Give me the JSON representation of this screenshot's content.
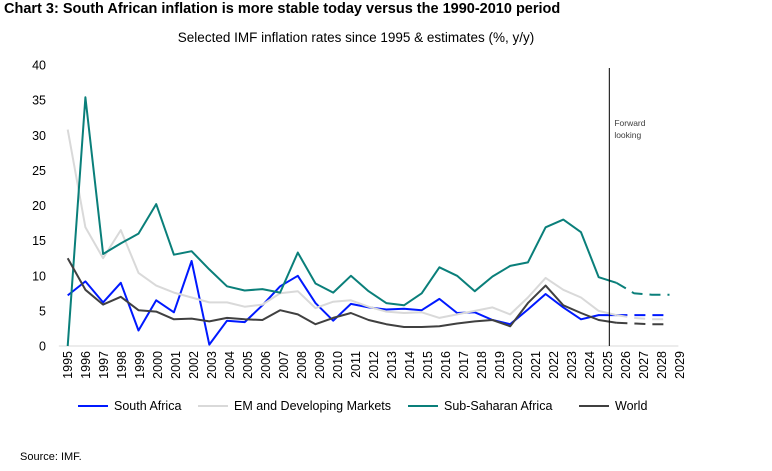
{
  "title": "Chart 3: South African inflation is more stable today versus the 1990-2010 period",
  "source": "Source: IMF.",
  "chart_data": {
    "type": "line",
    "title": "Chart 3: South African inflation is more stable today versus the 1990-2010 period",
    "subtitle": "Selected IMF inflation rates since 1995 & estimates (%, y/y)",
    "xlabel": "",
    "ylabel": "",
    "x": [
      1995,
      1996,
      1997,
      1998,
      1999,
      2000,
      2001,
      2002,
      2003,
      2004,
      2005,
      2006,
      2007,
      2008,
      2009,
      2010,
      2011,
      2012,
      2013,
      2014,
      2015,
      2016,
      2017,
      2018,
      2019,
      2020,
      2021,
      2022,
      2023,
      2024,
      2025,
      2026,
      2027,
      2028,
      2029
    ],
    "tick_labels": [
      "1995",
      "1996",
      "1997",
      "1998",
      "1999",
      "2000",
      "2001",
      "2002",
      "2003",
      "2004",
      "2005",
      "2006",
      "2007",
      "2008",
      "2009",
      "2010",
      "2011",
      "2012",
      "2013",
      "2014",
      "2015",
      "2016",
      "2017",
      "2018",
      "2019",
      "2020",
      "2021",
      "2022",
      "2023",
      "2024",
      "2025",
      "2026",
      "2027",
      "2028",
      "2029"
    ],
    "ylim": [
      0,
      40
    ],
    "yticks": [
      "0",
      "5",
      "10",
      "15",
      "20",
      "25",
      "30",
      "35",
      "40"
    ],
    "grid": false,
    "legend_position": "bottom",
    "forward_looking_label": "Forward looking",
    "forward_looking_year": 2025,
    "estimates_dashed_from": 2026,
    "series": [
      {
        "name": "South Africa",
        "color": "#0019ff",
        "values": [
          7.2,
          9.2,
          6.2,
          9.0,
          2.2,
          6.5,
          4.8,
          12.1,
          0.2,
          3.6,
          3.4,
          5.8,
          8.5,
          10.0,
          6.1,
          3.6,
          6.0,
          5.5,
          5.2,
          5.3,
          5.1,
          6.7,
          4.7,
          4.8,
          3.7,
          3.1,
          5.2,
          7.4,
          5.5,
          3.8,
          4.4,
          4.4,
          4.4,
          4.4,
          4.4
        ]
      },
      {
        "name": "EM and Developing Markets",
        "color": "#d9d9d9",
        "values": [
          30.8,
          16.9,
          12.5,
          16.5,
          10.4,
          8.6,
          7.6,
          6.9,
          6.2,
          6.2,
          5.6,
          5.9,
          7.5,
          7.8,
          5.4,
          6.3,
          6.5,
          5.6,
          4.9,
          4.7,
          4.8,
          4.0,
          4.5,
          5.0,
          5.5,
          4.5,
          6.9,
          9.7,
          8.0,
          6.9,
          5.0,
          4.4,
          4.0,
          3.8,
          3.8
        ]
      },
      {
        "name": "Sub-Saharan Africa",
        "color": "#0a7f7a",
        "values": [
          0.0,
          35.4,
          13.1,
          14.6,
          16.0,
          20.2,
          13.0,
          13.5,
          10.9,
          8.5,
          7.9,
          8.1,
          7.6,
          13.3,
          8.9,
          7.6,
          10.0,
          7.8,
          6.1,
          5.8,
          7.5,
          11.2,
          10.0,
          7.8,
          9.9,
          11.4,
          11.9,
          16.9,
          18.0,
          16.2,
          9.8,
          9.0,
          7.5,
          7.3,
          7.3
        ]
      },
      {
        "name": "World",
        "color": "#404040",
        "values": [
          12.5,
          8.0,
          5.9,
          7.0,
          5.1,
          4.9,
          3.8,
          3.9,
          3.5,
          4.0,
          3.8,
          3.7,
          5.1,
          4.5,
          3.1,
          4.0,
          4.7,
          3.7,
          3.1,
          2.7,
          2.7,
          2.8,
          3.2,
          3.5,
          3.7,
          2.8,
          6.1,
          8.6,
          5.8,
          4.7,
          3.7,
          3.3,
          3.2,
          3.1,
          3.1
        ]
      }
    ]
  }
}
